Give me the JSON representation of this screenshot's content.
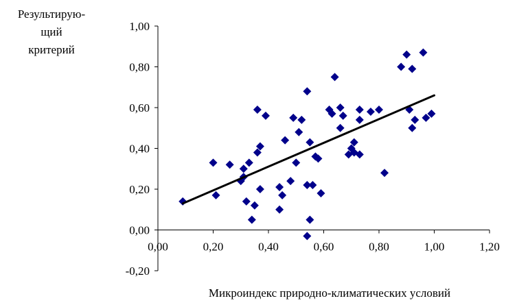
{
  "chart_data": {
    "type": "scatter",
    "ylabel": "Результирую-\nщий\nкритерий",
    "xlabel": "Микроиндекс природно-климатических условий",
    "xlim": [
      0,
      1.2
    ],
    "ylim": [
      -0.2,
      1.0
    ],
    "xticks": [
      "0,00",
      "0,20",
      "0,40",
      "0,60",
      "0,80",
      "1,00",
      "1,20"
    ],
    "yticks": [
      "-0,20",
      "0,00",
      "0,20",
      "0,40",
      "0,60",
      "0,80",
      "1,00"
    ],
    "marker_color": "#00008B",
    "trendline": {
      "x": [
        0.09,
        1.0
      ],
      "y": [
        0.13,
        0.66
      ]
    },
    "points": [
      [
        0.09,
        0.14
      ],
      [
        0.2,
        0.33
      ],
      [
        0.21,
        0.17
      ],
      [
        0.26,
        0.32
      ],
      [
        0.3,
        0.24
      ],
      [
        0.31,
        0.26
      ],
      [
        0.31,
        0.3
      ],
      [
        0.32,
        0.14
      ],
      [
        0.33,
        0.33
      ],
      [
        0.34,
        0.05
      ],
      [
        0.35,
        0.12
      ],
      [
        0.36,
        0.59
      ],
      [
        0.36,
        0.38
      ],
      [
        0.37,
        0.41
      ],
      [
        0.37,
        0.2
      ],
      [
        0.39,
        0.56
      ],
      [
        0.44,
        0.1
      ],
      [
        0.44,
        0.21
      ],
      [
        0.45,
        0.17
      ],
      [
        0.46,
        0.44
      ],
      [
        0.48,
        0.24
      ],
      [
        0.49,
        0.55
      ],
      [
        0.5,
        0.33
      ],
      [
        0.51,
        0.48
      ],
      [
        0.52,
        0.54
      ],
      [
        0.54,
        -0.03
      ],
      [
        0.54,
        0.68
      ],
      [
        0.54,
        0.22
      ],
      [
        0.55,
        0.05
      ],
      [
        0.55,
        0.43
      ],
      [
        0.56,
        0.22
      ],
      [
        0.57,
        0.36
      ],
      [
        0.58,
        0.35
      ],
      [
        0.59,
        0.18
      ],
      [
        0.62,
        0.59
      ],
      [
        0.63,
        0.57
      ],
      [
        0.64,
        0.75
      ],
      [
        0.66,
        0.5
      ],
      [
        0.66,
        0.6
      ],
      [
        0.67,
        0.56
      ],
      [
        0.69,
        0.37
      ],
      [
        0.7,
        0.4
      ],
      [
        0.71,
        0.43
      ],
      [
        0.71,
        0.38
      ],
      [
        0.73,
        0.37
      ],
      [
        0.73,
        0.54
      ],
      [
        0.73,
        0.59
      ],
      [
        0.77,
        0.58
      ],
      [
        0.8,
        0.59
      ],
      [
        0.82,
        0.28
      ],
      [
        0.88,
        0.8
      ],
      [
        0.9,
        0.86
      ],
      [
        0.91,
        0.59
      ],
      [
        0.92,
        0.5
      ],
      [
        0.92,
        0.79
      ],
      [
        0.93,
        0.54
      ],
      [
        0.96,
        0.87
      ],
      [
        0.97,
        0.55
      ],
      [
        0.99,
        0.57
      ]
    ]
  }
}
